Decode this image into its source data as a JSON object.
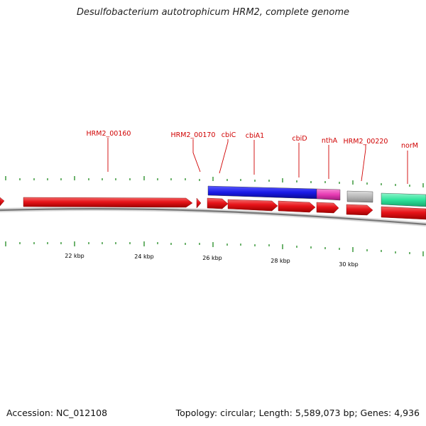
{
  "title": "Desulfobacterium autotrophicum HRM2, complete genome",
  "footer": {
    "accession": "Accession: NC_012108",
    "topology": "Topology: circular; Length: 5,589,073 bp; Genes: 4,936"
  },
  "gene_labels": [
    "HRM2_00160",
    "HRM2_00170",
    "cbiC",
    "cbiA1",
    "cbiD",
    "nthA",
    "HRM2_00220",
    "norM"
  ],
  "kbp_labels": [
    "22 kbp",
    "24 kbp",
    "26 kbp",
    "28 kbp",
    "30 kbp"
  ],
  "colors": {
    "gene": "#e8141a",
    "cog_blue": "#1a1ae6",
    "cog_magenta": "#e83cb4",
    "cog_gray": "#b8b8b8",
    "cog_green": "#2ee39b",
    "label": "#d00000",
    "tick": "#1f8a1f",
    "backbone": "#7a7a7a"
  }
}
